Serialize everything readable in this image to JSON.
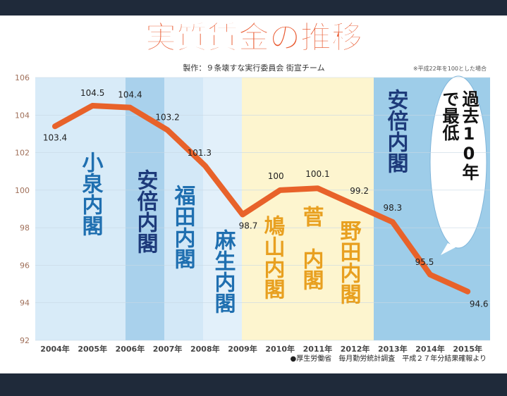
{
  "chart_data": {
    "type": "line",
    "title": "実質賃金の推移",
    "subtitle": "製作：９条壊すな実行委員会 街宣チーム",
    "note": "※平成22年を100とした場合",
    "source": "●厚生労働省　毎月勤労統計調査　平成２７年分結果確報より",
    "categories": [
      "2004年",
      "2005年",
      "2006年",
      "2007年",
      "2008年",
      "2009年",
      "2010年",
      "2011年",
      "2012年",
      "2013年",
      "2014年",
      "2015年"
    ],
    "values": [
      103.4,
      104.5,
      104.4,
      103.2,
      101.3,
      98.7,
      100,
      100.1,
      99.2,
      98.3,
      95.5,
      94.6
    ],
    "color": "#e8622a",
    "ylim": [
      92,
      106
    ],
    "yticks": [
      92,
      94,
      96,
      98,
      100,
      102,
      104,
      106
    ],
    "grid": true,
    "annotations": [
      "小泉内閣",
      "安倍内閣",
      "福田内閣",
      "麻生内閣",
      "鳩山内閣",
      "菅　内閣",
      "野田内閣",
      "安倍内閣"
    ],
    "callout": [
      "過去10年",
      "で最低"
    ]
  }
}
